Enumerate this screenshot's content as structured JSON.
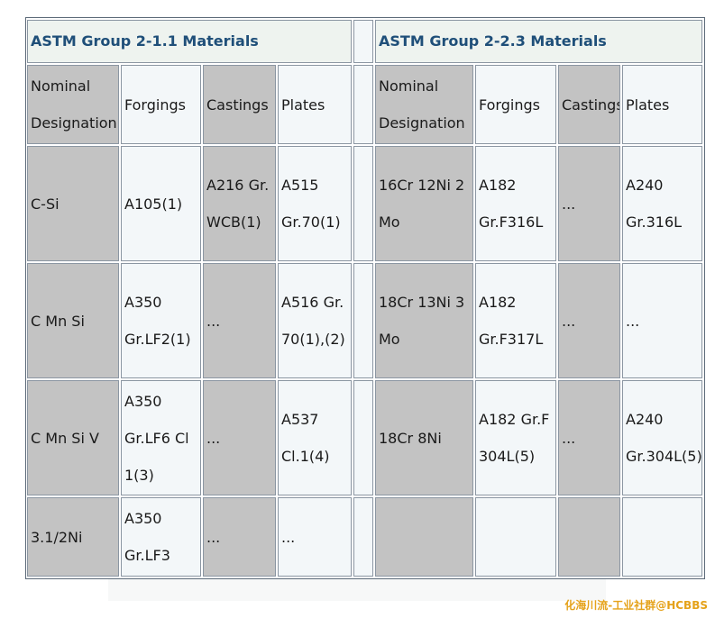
{
  "left_group_title": "ASTM Group 2-1.1 Materials",
  "right_group_title": "ASTM Group 2-2.3 Materials",
  "columns": [
    "Nominal Designation",
    "Forgings",
    "Castings",
    "Plates"
  ],
  "left_rows": [
    [
      "C-Si",
      "A105(1)",
      "A216 Gr.WCB(1)",
      "A515 Gr.70(1)"
    ],
    [
      "C Mn Si",
      "A350 Gr.LF2(1)",
      "...",
      "A516 Gr.70(1),(2)"
    ],
    [
      "C Mn Si V",
      "A350 Gr.LF6 Cl 1(3)",
      "...",
      "A537 Cl.1(4)"
    ],
    [
      "3.1/2Ni",
      "A350 Gr.LF3",
      "...",
      "..."
    ]
  ],
  "right_rows": [
    [
      "16Cr 12Ni 2 Mo",
      "A182 Gr.F316L",
      "...",
      "A240 Gr.316L"
    ],
    [
      "18Cr 13Ni 3 Mo",
      "A182 Gr.F317L",
      "...",
      "..."
    ],
    [
      "18Cr 8Ni",
      "A182 Gr.F304L(5)",
      "...",
      "A240 Gr.304L(5)"
    ],
    [
      "",
      "",
      "",
      ""
    ]
  ],
  "watermark": "化海川流-工业社群@HCBBS"
}
